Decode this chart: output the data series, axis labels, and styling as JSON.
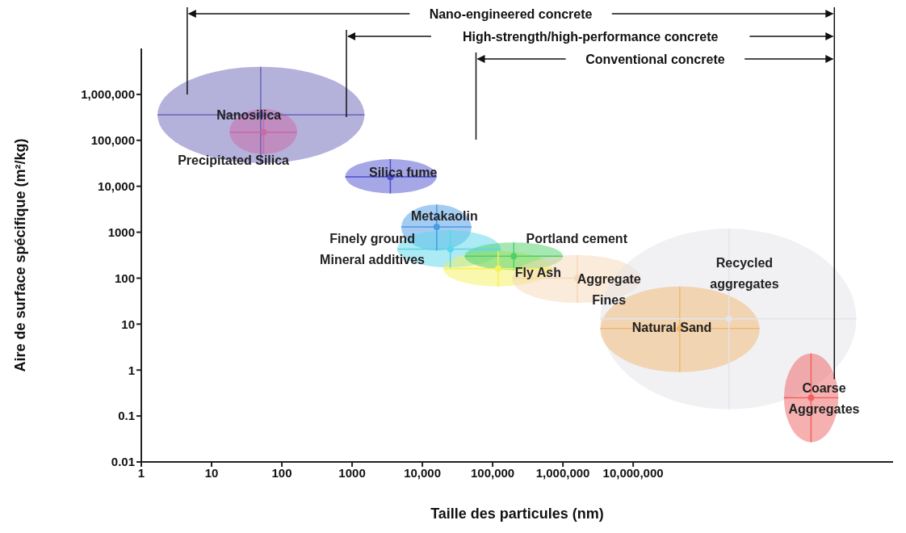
{
  "chart_data": {
    "type": "scatter",
    "xlabel": "Taille des particules (nm)",
    "ylabel": "Aire de surface spécifique (m²/kg)",
    "log": "xy",
    "legend": false,
    "grid": false,
    "marker": "circle",
    "xlim": [
      1,
      50000000000
    ],
    "xticks": [
      1,
      10,
      100,
      1000,
      {
        "value": 10000,
        "label": "10,000"
      },
      {
        "value": 100000,
        "label": "100,000"
      },
      {
        "value": 1000000,
        "label": "1,000,000"
      },
      {
        "value": 10000000,
        "label": "10,000,000"
      }
    ],
    "ylim": [
      0.01,
      10000000
    ],
    "yticks": [
      0.01,
      0.1,
      1,
      10,
      100,
      1000,
      {
        "value": 10000,
        "label": "10,000"
      },
      {
        "value": 100000,
        "label": "100,000"
      },
      {
        "value": 1000000,
        "label": "1,000,000"
      }
    ],
    "annotations": [
      "Nano-engineered concrete",
      "High-strength/high-performance concrete",
      "Conventional concrete"
    ],
    "ref_lines": [
      {
        "axis": "x",
        "value": 4.5,
        "color": "#111111"
      },
      {
        "axis": "x",
        "value": 830,
        "color": "#111111"
      },
      {
        "axis": "x",
        "value": 58000,
        "color": "#111111"
      },
      {
        "axis": "x",
        "value": 7300000000,
        "color": "#111111"
      }
    ],
    "series": [
      {
        "name": "Nanosilica",
        "color": "#6a64b8",
        "x": [
          50
        ],
        "values": [
          360000
        ],
        "xerrors": [
          [
            1.7,
            1500
          ]
        ],
        "errors": [
          [
            32000,
            4000000
          ]
        ]
      },
      {
        "name": "Precipitated Silica",
        "color": "#c96aa6",
        "x": [
          55
        ],
        "values": [
          150000
        ],
        "xerrors": [
          [
            18,
            165
          ]
        ],
        "errors": [
          [
            50000,
            480000
          ]
        ]
      },
      {
        "name": "Silica fume",
        "color": "#4b4fd0",
        "x": [
          3500
        ],
        "values": [
          16000
        ],
        "xerrors": [
          [
            800,
            16000
          ]
        ],
        "errors": [
          [
            7000,
            39000
          ]
        ]
      },
      {
        "name": "Metakaolin",
        "color": "#4a9ae6",
        "x": [
          16000
        ],
        "values": [
          1300
        ],
        "xerrors": [
          [
            5000,
            50000
          ]
        ],
        "errors": [
          [
            400,
            4000
          ]
        ]
      },
      {
        "name": "Finely ground Mineral additives",
        "color": "#5ad6ea",
        "x": [
          25000
        ],
        "values": [
          430
        ],
        "xerrors": [
          [
            4400,
            130000
          ]
        ],
        "errors": [
          [
            170,
            1100
          ]
        ]
      },
      {
        "name": "Fly Ash",
        "color": "#f4f25a",
        "x": [
          120000
        ],
        "values": [
          160
        ],
        "xerrors": [
          [
            20000,
            700000
          ]
        ],
        "errors": [
          [
            66,
            390
          ]
        ]
      },
      {
        "name": "Portland cement",
        "color": "#4ed06a",
        "x": [
          200000
        ],
        "values": [
          300
        ],
        "xerrors": [
          [
            40000,
            1000000
          ]
        ],
        "errors": [
          [
            150,
            600
          ]
        ]
      },
      {
        "name": "Aggregate Fines",
        "color": "#f6d8b8",
        "x": [
          1600000
        ],
        "values": [
          100
        ],
        "xerrors": [
          [
            190000,
            13000000
          ]
        ],
        "errors": [
          [
            29,
            320
          ]
        ]
      },
      {
        "name": "Recycled aggregates",
        "color": "#e4e4ea",
        "x": [
          230000000
        ],
        "values": [
          13
        ],
        "xerrors": [
          [
            3400000,
            15000000000
          ]
        ],
        "errors": [
          [
            0.14,
            1200
          ]
        ]
      },
      {
        "name": "Natural Sand",
        "color": "#f2b870",
        "x": [
          46000000
        ],
        "values": [
          8
        ],
        "xerrors": [
          [
            3400000,
            630000000
          ]
        ],
        "errors": [
          [
            0.9,
            66
          ]
        ]
      },
      {
        "name": "Coarse Aggregates",
        "color": "#f06262",
        "x": [
          3400000000
        ],
        "values": [
          0.25
        ],
        "xerrors": [
          [
            1400000000,
            8300000000
          ]
        ],
        "errors": [
          [
            0.027,
            2.3
          ]
        ]
      }
    ]
  }
}
